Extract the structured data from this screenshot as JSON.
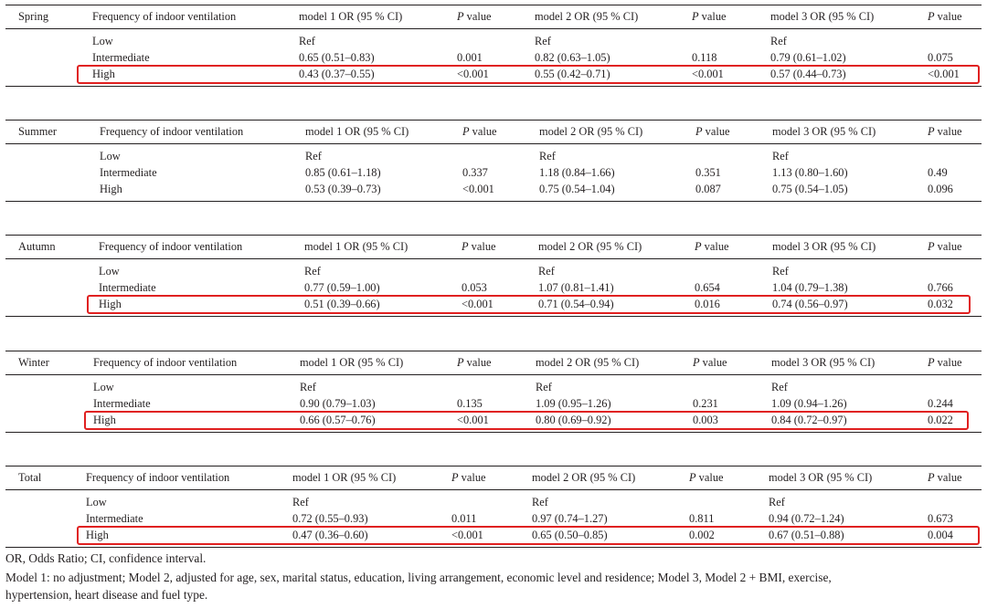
{
  "header_labels": {
    "freq": "Frequency of indoor ventilation",
    "m1": "model 1 OR (95 % CI)",
    "p": "P",
    "pval_suffix": " value",
    "m2": "model 2 OR (95 % CI)",
    "m3": "model 3 OR (95 % CI)"
  },
  "seasons": [
    {
      "name": "Spring",
      "rows": [
        {
          "label": "Low",
          "m1": "Ref",
          "p1": "",
          "m2": "Ref",
          "p2": "",
          "m3": "Ref",
          "p3": ""
        },
        {
          "label": "Intermediate",
          "m1": "0.65 (0.51–0.83)",
          "p1": "0.001",
          "m2": "0.82 (0.63–1.05)",
          "p2": "0.118",
          "m3": "0.79 (0.61–1.02)",
          "p3": "0.075"
        },
        {
          "label": "High",
          "m1": "0.43 (0.37–0.55)",
          "p1": "<0.001",
          "m2": "0.55 (0.42–0.71)",
          "p2": "<0.001",
          "m3": "0.57 (0.44–0.73)",
          "p3": "<0.001"
        }
      ],
      "highlighted_row": "High"
    },
    {
      "name": "Summer",
      "rows": [
        {
          "label": "Low",
          "m1": "Ref",
          "p1": "",
          "m2": "Ref",
          "p2": "",
          "m3": "Ref",
          "p3": ""
        },
        {
          "label": "Intermediate",
          "m1": "0.85 (0.61–1.18)",
          "p1": "0.337",
          "m2": "1.18 (0.84–1.66)",
          "p2": "0.351",
          "m3": "1.13 (0.80–1.60)",
          "p3": "0.49"
        },
        {
          "label": "High",
          "m1": "0.53 (0.39–0.73)",
          "p1": "<0.001",
          "m2": "0.75 (0.54–1.04)",
          "p2": "0.087",
          "m3": "0.75 (0.54–1.05)",
          "p3": "0.096"
        }
      ],
      "highlighted_row": ""
    },
    {
      "name": "Autumn",
      "rows": [
        {
          "label": "Low",
          "m1": "Ref",
          "p1": "",
          "m2": "Ref",
          "p2": "",
          "m3": "Ref",
          "p3": ""
        },
        {
          "label": "Intermediate",
          "m1": "0.77 (0.59–1.00)",
          "p1": "0.053",
          "m2": "1.07 (0.81–1.41)",
          "p2": "0.654",
          "m3": "1.04 (0.79–1.38)",
          "p3": "0.766"
        },
        {
          "label": "High",
          "m1": "0.51 (0.39–0.66)",
          "p1": "<0.001",
          "m2": "0.71 (0.54–0.94)",
          "p2": "0.016",
          "m3": "0.74 (0.56–0.97)",
          "p3": "0.032"
        }
      ],
      "highlighted_row": "High"
    },
    {
      "name": "Winter",
      "rows": [
        {
          "label": "Low",
          "m1": "Ref",
          "p1": "",
          "m2": "Ref",
          "p2": "",
          "m3": "Ref",
          "p3": ""
        },
        {
          "label": "Intermediate",
          "m1": "0.90 (0.79–1.03)",
          "p1": "0.135",
          "m2": "1.09 (0.95–1.26)",
          "p2": "0.231",
          "m3": "1.09 (0.94–1.26)",
          "p3": "0.244"
        },
        {
          "label": "High",
          "m1": "0.66 (0.57–0.76)",
          "p1": "<0.001",
          "m2": "0.80 (0.69–0.92)",
          "p2": "0.003",
          "m3": "0.84 (0.72–0.97)",
          "p3": "0.022"
        }
      ],
      "highlighted_row": "High"
    },
    {
      "name": "Total",
      "rows": [
        {
          "label": "Low",
          "m1": "Ref",
          "p1": "",
          "m2": "Ref",
          "p2": "",
          "m3": "Ref",
          "p3": ""
        },
        {
          "label": "Intermediate",
          "m1": "0.72 (0.55–0.93)",
          "p1": "0.011",
          "m2": "0.97 (0.74–1.27)",
          "p2": "0.811",
          "m3": "0.94 (0.72–1.24)",
          "p3": "0.673"
        },
        {
          "label": "High",
          "m1": "0.47 (0.36–0.60)",
          "p1": "<0.001",
          "m2": "0.65 (0.50–0.85)",
          "p2": "0.002",
          "m3": "0.67 (0.51–0.88)",
          "p3": "0.004"
        }
      ],
      "highlighted_row": "High"
    }
  ],
  "footnotes": [
    "OR, Odds Ratio; CI, confidence interval.",
    "Model 1: no adjustment; Model 2, adjusted for age, sex, marital status, education, living arrangement, economic level and residence; Model 3, Model 2 + BMI, exercise,",
    "hypertension, heart disease and fuel type."
  ],
  "colors": {
    "highlight": "#e02020",
    "text": "#231f20"
  }
}
